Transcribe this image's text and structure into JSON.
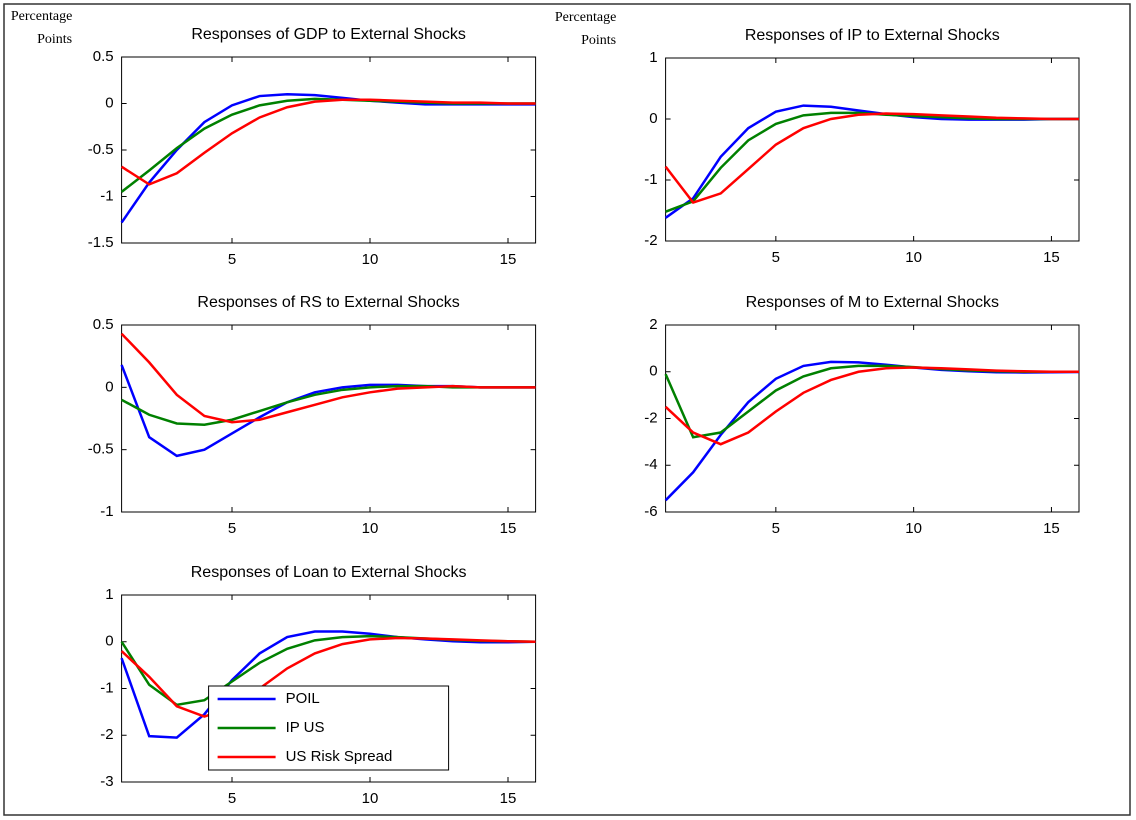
{
  "chart_data": [
    {
      "type": "line",
      "title": "Responses of GDP to External Shocks",
      "ylabel": [
        "Percentage",
        "Points"
      ],
      "x": [
        1,
        2,
        3,
        4,
        5,
        6,
        7,
        8,
        9,
        10,
        11,
        12,
        13,
        14,
        15,
        16
      ],
      "xlim": [
        1,
        16
      ],
      "xticks": [
        5,
        10,
        15
      ],
      "ylim": [
        -1.5,
        0.5
      ],
      "yticks": [
        -1.5,
        -1,
        -0.5,
        0,
        0.5
      ],
      "series": [
        {
          "color": "#0000ff",
          "values": [
            -1.28,
            -0.85,
            -0.5,
            -0.2,
            -0.02,
            0.08,
            0.1,
            0.09,
            0.06,
            0.03,
            0.01,
            -0.01,
            -0.01,
            -0.01,
            -0.01,
            -0.01
          ]
        },
        {
          "color": "#008000",
          "values": [
            -0.95,
            -0.72,
            -0.48,
            -0.27,
            -0.12,
            -0.02,
            0.03,
            0.05,
            0.04,
            0.03,
            0.02,
            0.01,
            0,
            0,
            0,
            0
          ]
        },
        {
          "color": "#ff0000",
          "values": [
            -0.68,
            -0.87,
            -0.75,
            -0.53,
            -0.32,
            -0.15,
            -0.04,
            0.02,
            0.04,
            0.04,
            0.03,
            0.02,
            0.01,
            0.01,
            0,
            0
          ]
        }
      ]
    },
    {
      "type": "line",
      "title": "Responses of IP to External Shocks",
      "ylabel": [
        "Percentage",
        "Points"
      ],
      "x": [
        1,
        2,
        3,
        4,
        5,
        6,
        7,
        8,
        9,
        10,
        11,
        12,
        13,
        14,
        15,
        16
      ],
      "xlim": [
        1,
        16
      ],
      "xticks": [
        5,
        10,
        15
      ],
      "ylim": [
        -2,
        1
      ],
      "yticks": [
        -2,
        -1,
        0,
        1
      ],
      "series": [
        {
          "color": "#0000ff",
          "values": [
            -1.62,
            -1.3,
            -0.62,
            -0.15,
            0.12,
            0.22,
            0.2,
            0.14,
            0.08,
            0.03,
            0,
            -0.01,
            -0.01,
            -0.01,
            0,
            0
          ]
        },
        {
          "color": "#008000",
          "values": [
            -1.52,
            -1.35,
            -0.8,
            -0.35,
            -0.08,
            0.06,
            0.1,
            0.1,
            0.07,
            0.05,
            0.03,
            0.01,
            0,
            0,
            0,
            0
          ]
        },
        {
          "color": "#ff0000",
          "values": [
            -0.78,
            -1.37,
            -1.22,
            -0.82,
            -0.42,
            -0.15,
            0,
            0.07,
            0.09,
            0.08,
            0.06,
            0.04,
            0.02,
            0.01,
            0,
            0
          ]
        }
      ]
    },
    {
      "type": "line",
      "title": "Responses of RS to External Shocks",
      "x": [
        1,
        2,
        3,
        4,
        5,
        6,
        7,
        8,
        9,
        10,
        11,
        12,
        13,
        14,
        15,
        16
      ],
      "xlim": [
        1,
        16
      ],
      "xticks": [
        5,
        10,
        15
      ],
      "ylim": [
        -1,
        0.5
      ],
      "yticks": [
        -1,
        -0.5,
        0,
        0.5
      ],
      "series": [
        {
          "color": "#0000ff",
          "values": [
            0.18,
            -0.4,
            -0.55,
            -0.5,
            -0.37,
            -0.24,
            -0.12,
            -0.04,
            0,
            0.02,
            0.02,
            0.01,
            0.01,
            0,
            0,
            0
          ]
        },
        {
          "color": "#008000",
          "values": [
            -0.1,
            -0.22,
            -0.29,
            -0.3,
            -0.26,
            -0.19,
            -0.12,
            -0.06,
            -0.02,
            0,
            0.01,
            0.01,
            0,
            0,
            0,
            0
          ]
        },
        {
          "color": "#ff0000",
          "values": [
            0.43,
            0.2,
            -0.06,
            -0.23,
            -0.28,
            -0.26,
            -0.2,
            -0.14,
            -0.08,
            -0.04,
            -0.01,
            0,
            0.01,
            0,
            0,
            0
          ]
        }
      ]
    },
    {
      "type": "line",
      "title": "Responses of M to External Shocks",
      "x": [
        1,
        2,
        3,
        4,
        5,
        6,
        7,
        8,
        9,
        10,
        11,
        12,
        13,
        14,
        15,
        16
      ],
      "xlim": [
        1,
        16
      ],
      "xticks": [
        5,
        10,
        15
      ],
      "ylim": [
        -6,
        2
      ],
      "yticks": [
        -6,
        -4,
        -2,
        0,
        2
      ],
      "series": [
        {
          "color": "#0000ff",
          "values": [
            -5.5,
            -4.3,
            -2.7,
            -1.3,
            -0.3,
            0.25,
            0.42,
            0.4,
            0.3,
            0.18,
            0.08,
            0.02,
            -0.02,
            -0.03,
            -0.02,
            -0.01
          ]
        },
        {
          "color": "#008000",
          "values": [
            -0.1,
            -2.8,
            -2.6,
            -1.7,
            -0.8,
            -0.2,
            0.15,
            0.25,
            0.25,
            0.2,
            0.12,
            0.06,
            0.02,
            0,
            0,
            0
          ]
        },
        {
          "color": "#ff0000",
          "values": [
            -1.5,
            -2.6,
            -3.1,
            -2.6,
            -1.7,
            -0.9,
            -0.35,
            0,
            0.15,
            0.18,
            0.15,
            0.1,
            0.05,
            0.02,
            0,
            0
          ]
        }
      ]
    },
    {
      "type": "line",
      "title": "Responses of Loan to External Shocks",
      "legend": "lower center",
      "x": [
        1,
        2,
        3,
        4,
        5,
        6,
        7,
        8,
        9,
        10,
        11,
        12,
        13,
        14,
        15,
        16
      ],
      "xlim": [
        1,
        16
      ],
      "xticks": [
        5,
        10,
        15
      ],
      "ylim": [
        -3,
        1
      ],
      "yticks": [
        -3,
        -2,
        -1,
        0,
        1
      ],
      "series": [
        {
          "name": "POIL",
          "color": "#0000ff",
          "values": [
            -0.35,
            -2.02,
            -2.05,
            -1.55,
            -0.82,
            -0.25,
            0.1,
            0.22,
            0.22,
            0.17,
            0.1,
            0.05,
            0.01,
            -0.01,
            -0.01,
            0
          ]
        },
        {
          "name": "IP US",
          "color": "#008000",
          "values": [
            0,
            -0.92,
            -1.35,
            -1.25,
            -0.85,
            -0.45,
            -0.15,
            0.03,
            0.1,
            0.12,
            0.1,
            0.07,
            0.04,
            0.02,
            0.01,
            0
          ]
        },
        {
          "name": "US Risk Spread",
          "color": "#ff0000",
          "values": [
            -0.2,
            -0.75,
            -1.38,
            -1.6,
            -1.4,
            -1,
            -0.57,
            -0.25,
            -0.05,
            0.05,
            0.08,
            0.07,
            0.05,
            0.03,
            0.01,
            0
          ]
        }
      ]
    }
  ]
}
